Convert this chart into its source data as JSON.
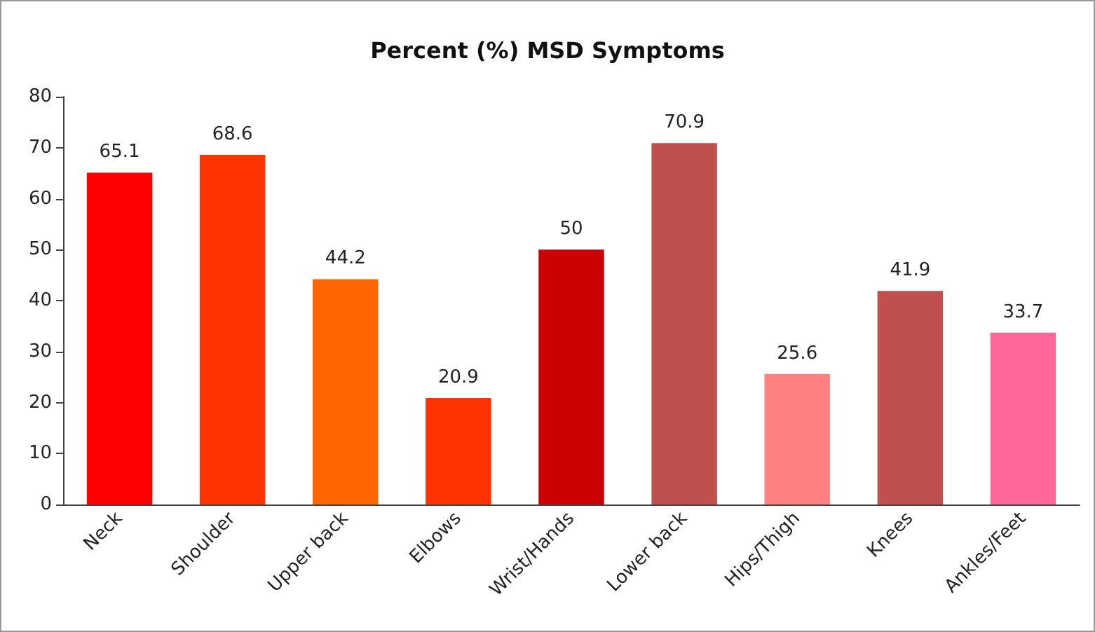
{
  "chart_data": {
    "type": "bar",
    "title": "Percent (%) MSD Symptoms",
    "categories": [
      "Neck",
      "Shoulder",
      "Upper back",
      "Elbows",
      "Wrist/Hands",
      "Lower back",
      "Hips/Thigh",
      "Knees",
      "Ankles/Feet"
    ],
    "values": [
      65.1,
      68.6,
      44.2,
      20.9,
      50,
      70.9,
      25.6,
      41.9,
      33.7
    ],
    "colors": [
      "#ff0000",
      "#ff3300",
      "#ff6600",
      "#ff3300",
      "#cc0000",
      "#c0504d",
      "#ff8080",
      "#c0504d",
      "#ff6699"
    ],
    "ylim": [
      0,
      80
    ],
    "yticks": [
      0,
      10,
      20,
      30,
      40,
      50,
      60,
      70,
      80
    ],
    "data_labels": true
  }
}
